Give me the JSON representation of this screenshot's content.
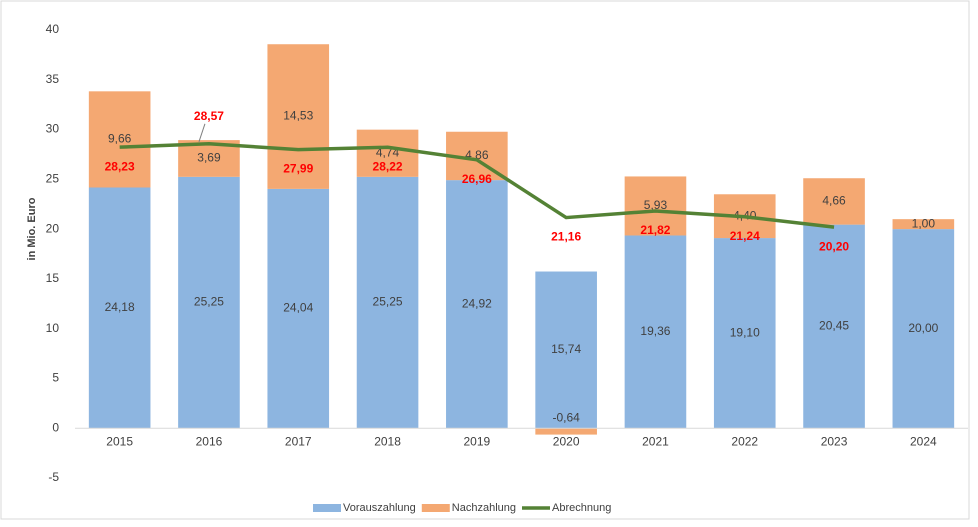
{
  "chart_data": {
    "type": "bar-line",
    "y_label": "in Mio. Euro",
    "categories": [
      "2015",
      "2016",
      "2017",
      "2018",
      "2019",
      "2020",
      "2021",
      "2022",
      "2023",
      "2024"
    ],
    "series": [
      {
        "name": "Vorauszahlung",
        "type": "bar",
        "color": "#8db5e0",
        "values": [
          24.18,
          25.25,
          24.04,
          25.25,
          24.92,
          15.74,
          19.36,
          19.1,
          20.45,
          20.0
        ],
        "value_labels": [
          "24,18",
          "25,25",
          "24,04",
          "25,25",
          "24,92",
          "15,74",
          "19,36",
          "19,10",
          "20,45",
          "20,00"
        ]
      },
      {
        "name": "Nachzahlung",
        "type": "bar",
        "color": "#f4a872",
        "values": [
          9.66,
          3.69,
          14.53,
          4.74,
          4.86,
          -0.64,
          5.93,
          4.4,
          4.66,
          1.0
        ],
        "value_labels": [
          "9,66",
          "3,69",
          "14,53",
          "4,74",
          "4,86",
          "-0,64",
          "5,93",
          "4,40",
          "4,66",
          "1,00"
        ]
      },
      {
        "name": "Abrechnung",
        "type": "line",
        "color": "#548235",
        "values": [
          28.23,
          28.57,
          27.99,
          28.22,
          26.96,
          21.16,
          21.82,
          21.24,
          20.2,
          null
        ],
        "value_labels": [
          "28,23",
          "28,57",
          "27,99",
          "28,22",
          "26,96",
          "21,16",
          "21,82",
          "21,24",
          "20,20",
          null
        ]
      }
    ],
    "ylim": [
      -5,
      40
    ],
    "yticks": [
      -5,
      0,
      5,
      10,
      15,
      20,
      25,
      30,
      35,
      40
    ],
    "grid": false,
    "legend": "bottom"
  }
}
